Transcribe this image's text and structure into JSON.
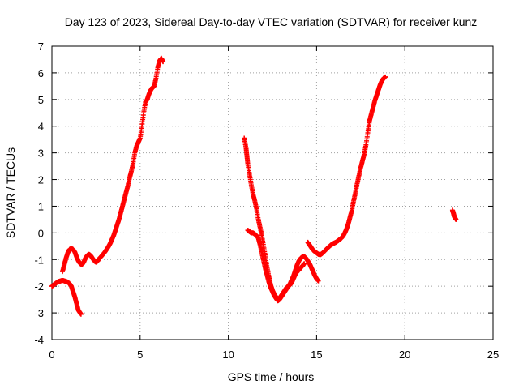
{
  "chart_data": {
    "type": "scatter",
    "title": "Day 123 of 2023, Sidereal Day-to-day VTEC variation (SDTVAR) for receiver kunz",
    "xlabel": "GPS time / hours",
    "ylabel": "SDTVAR / TECUs",
    "xlim": [
      0,
      25
    ],
    "ylim": [
      -4,
      7
    ],
    "x_ticks": [
      "0",
      "5",
      "10",
      "15",
      "20",
      "25"
    ],
    "y_ticks": [
      "-4",
      "-3",
      "-2",
      "-1",
      "0",
      "1",
      "2",
      "3",
      "4",
      "5",
      "6",
      "7"
    ],
    "grid": true,
    "marker": "plus",
    "color": "#ff0000",
    "series": [
      {
        "segments": [
          [
            [
              0.0,
              -2.0
            ],
            [
              0.1,
              -1.95
            ],
            [
              0.2,
              -1.9
            ],
            [
              0.3,
              -1.85
            ],
            [
              0.4,
              -1.82
            ],
            [
              0.5,
              -1.8
            ],
            [
              0.6,
              -1.78
            ],
            [
              0.7,
              -1.8
            ],
            [
              0.8,
              -1.82
            ],
            [
              0.9,
              -1.85
            ],
            [
              1.0,
              -1.9
            ],
            [
              1.1,
              -2.0
            ],
            [
              1.2,
              -2.2
            ],
            [
              1.3,
              -2.4
            ],
            [
              1.4,
              -2.65
            ],
            [
              1.5,
              -2.9
            ],
            [
              1.6,
              -3.0
            ],
            [
              1.65,
              -3.05
            ]
          ],
          [
            [
              0.6,
              -1.45
            ],
            [
              0.7,
              -1.2
            ],
            [
              0.8,
              -0.95
            ],
            [
              0.9,
              -0.75
            ],
            [
              1.0,
              -0.62
            ],
            [
              1.1,
              -0.58
            ],
            [
              1.2,
              -0.62
            ],
            [
              1.3,
              -0.72
            ],
            [
              1.4,
              -0.9
            ],
            [
              1.5,
              -1.05
            ],
            [
              1.6,
              -1.15
            ],
            [
              1.7,
              -1.2
            ],
            [
              1.8,
              -1.1
            ],
            [
              1.9,
              -0.95
            ],
            [
              2.0,
              -0.85
            ],
            [
              2.1,
              -0.8
            ],
            [
              2.2,
              -0.85
            ],
            [
              2.3,
              -0.95
            ],
            [
              2.4,
              -1.05
            ],
            [
              2.5,
              -1.1
            ],
            [
              2.6,
              -1.05
            ],
            [
              2.7,
              -0.95
            ],
            [
              2.8,
              -0.88
            ],
            [
              2.9,
              -0.8
            ],
            [
              3.0,
              -0.72
            ],
            [
              3.1,
              -0.62
            ],
            [
              3.2,
              -0.52
            ],
            [
              3.3,
              -0.4
            ],
            [
              3.4,
              -0.25
            ],
            [
              3.5,
              -0.1
            ],
            [
              3.6,
              0.1
            ],
            [
              3.7,
              0.3
            ],
            [
              3.8,
              0.5
            ],
            [
              3.9,
              0.75
            ],
            [
              4.0,
              1.0
            ],
            [
              4.1,
              1.25
            ],
            [
              4.2,
              1.5
            ],
            [
              4.3,
              1.75
            ],
            [
              4.4,
              2.05
            ],
            [
              4.5,
              2.3
            ],
            [
              4.6,
              2.6
            ],
            [
              4.7,
              3.0
            ],
            [
              4.8,
              3.25
            ],
            [
              4.9,
              3.4
            ],
            [
              5.0,
              3.55
            ],
            [
              5.1,
              4.0
            ],
            [
              5.2,
              4.5
            ],
            [
              5.3,
              4.9
            ],
            [
              5.4,
              5.0
            ],
            [
              5.5,
              5.2
            ],
            [
              5.6,
              5.35
            ],
            [
              5.7,
              5.45
            ],
            [
              5.8,
              5.5
            ],
            [
              5.9,
              5.8
            ],
            [
              6.0,
              6.2
            ],
            [
              6.1,
              6.45
            ],
            [
              6.2,
              6.55
            ],
            [
              6.3,
              6.42
            ]
          ],
          [
            [
              10.9,
              3.55
            ],
            [
              11.0,
              3.2
            ],
            [
              11.05,
              2.9
            ],
            [
              11.1,
              2.6
            ],
            [
              11.2,
              2.2
            ],
            [
              11.3,
              1.8
            ],
            [
              11.4,
              1.45
            ],
            [
              11.5,
              1.2
            ],
            [
              11.6,
              0.9
            ],
            [
              11.7,
              0.5
            ],
            [
              11.8,
              0.2
            ],
            [
              11.9,
              -0.1
            ],
            [
              12.0,
              -0.5
            ],
            [
              12.1,
              -0.9
            ],
            [
              12.2,
              -1.3
            ],
            [
              12.3,
              -1.65
            ],
            [
              12.4,
              -1.95
            ],
            [
              12.5,
              -2.15
            ],
            [
              12.6,
              -2.3
            ],
            [
              12.7,
              -2.4
            ],
            [
              12.8,
              -2.5
            ],
            [
              12.9,
              -2.45
            ],
            [
              13.0,
              -2.35
            ],
            [
              13.1,
              -2.25
            ],
            [
              13.2,
              -2.15
            ],
            [
              13.3,
              -2.05
            ],
            [
              13.4,
              -2.0
            ],
            [
              13.5,
              -1.9
            ],
            [
              13.6,
              -1.75
            ],
            [
              13.7,
              -1.6
            ],
            [
              13.8,
              -1.4
            ],
            [
              13.9,
              -1.2
            ],
            [
              14.0,
              -1.05
            ],
            [
              14.1,
              -0.95
            ],
            [
              14.2,
              -0.9
            ],
            [
              14.3,
              -0.88
            ],
            [
              14.4,
              -0.95
            ],
            [
              14.5,
              -1.05
            ],
            [
              14.6,
              -1.15
            ],
            [
              14.7,
              -1.3
            ],
            [
              14.8,
              -1.45
            ],
            [
              14.9,
              -1.6
            ],
            [
              15.0,
              -1.72
            ],
            [
              15.1,
              -1.8
            ]
          ],
          [
            [
              11.1,
              0.1
            ],
            [
              11.2,
              0.05
            ],
            [
              11.3,
              0.0
            ],
            [
              11.4,
              0.0
            ],
            [
              11.5,
              -0.05
            ],
            [
              11.6,
              -0.1
            ],
            [
              11.7,
              -0.2
            ],
            [
              11.8,
              -0.45
            ],
            [
              11.9,
              -0.75
            ],
            [
              12.0,
              -1.05
            ],
            [
              12.1,
              -1.35
            ],
            [
              12.2,
              -1.6
            ],
            [
              12.3,
              -1.85
            ],
            [
              12.4,
              -2.05
            ],
            [
              12.5,
              -2.2
            ],
            [
              12.6,
              -2.35
            ],
            [
              12.7,
              -2.45
            ],
            [
              12.8,
              -2.55
            ],
            [
              12.9,
              -2.5
            ],
            [
              13.0,
              -2.4
            ],
            [
              13.1,
              -2.3
            ],
            [
              13.2,
              -2.2
            ],
            [
              13.3,
              -2.1
            ],
            [
              13.4,
              -2.0
            ],
            [
              13.5,
              -1.95
            ],
            [
              13.6,
              -1.85
            ],
            [
              13.7,
              -1.7
            ],
            [
              13.8,
              -1.55
            ],
            [
              13.9,
              -1.45
            ],
            [
              14.0,
              -1.4
            ],
            [
              14.1,
              -1.3
            ],
            [
              14.2,
              -1.25
            ],
            [
              14.3,
              -1.15
            ]
          ],
          [
            [
              14.5,
              -0.35
            ],
            [
              14.6,
              -0.45
            ],
            [
              14.7,
              -0.55
            ],
            [
              14.8,
              -0.65
            ],
            [
              14.9,
              -0.7
            ],
            [
              15.0,
              -0.75
            ],
            [
              15.1,
              -0.8
            ],
            [
              15.2,
              -0.82
            ],
            [
              15.3,
              -0.78
            ],
            [
              15.4,
              -0.72
            ],
            [
              15.5,
              -0.65
            ],
            [
              15.6,
              -0.58
            ],
            [
              15.7,
              -0.52
            ],
            [
              15.8,
              -0.46
            ],
            [
              15.9,
              -0.42
            ],
            [
              16.0,
              -0.38
            ],
            [
              16.1,
              -0.35
            ],
            [
              16.2,
              -0.3
            ],
            [
              16.3,
              -0.25
            ],
            [
              16.4,
              -0.2
            ],
            [
              16.5,
              -0.12
            ],
            [
              16.6,
              0.0
            ],
            [
              16.7,
              0.15
            ],
            [
              16.8,
              0.35
            ],
            [
              16.9,
              0.6
            ],
            [
              17.0,
              0.85
            ],
            [
              17.1,
              1.2
            ],
            [
              17.2,
              1.5
            ],
            [
              17.3,
              1.85
            ],
            [
              17.4,
              2.15
            ],
            [
              17.5,
              2.45
            ],
            [
              17.6,
              2.7
            ],
            [
              17.7,
              2.95
            ],
            [
              17.8,
              3.3
            ],
            [
              17.9,
              3.75
            ],
            [
              18.0,
              4.2
            ],
            [
              18.1,
              4.45
            ],
            [
              18.2,
              4.7
            ],
            [
              18.3,
              4.95
            ],
            [
              18.4,
              5.15
            ],
            [
              18.5,
              5.35
            ],
            [
              18.6,
              5.55
            ],
            [
              18.7,
              5.7
            ],
            [
              18.8,
              5.8
            ],
            [
              18.9,
              5.85
            ]
          ],
          [
            [
              22.7,
              0.85
            ],
            [
              22.75,
              0.75
            ],
            [
              22.8,
              0.62
            ],
            [
              22.85,
              0.55
            ],
            [
              22.9,
              0.5
            ]
          ]
        ]
      }
    ]
  }
}
